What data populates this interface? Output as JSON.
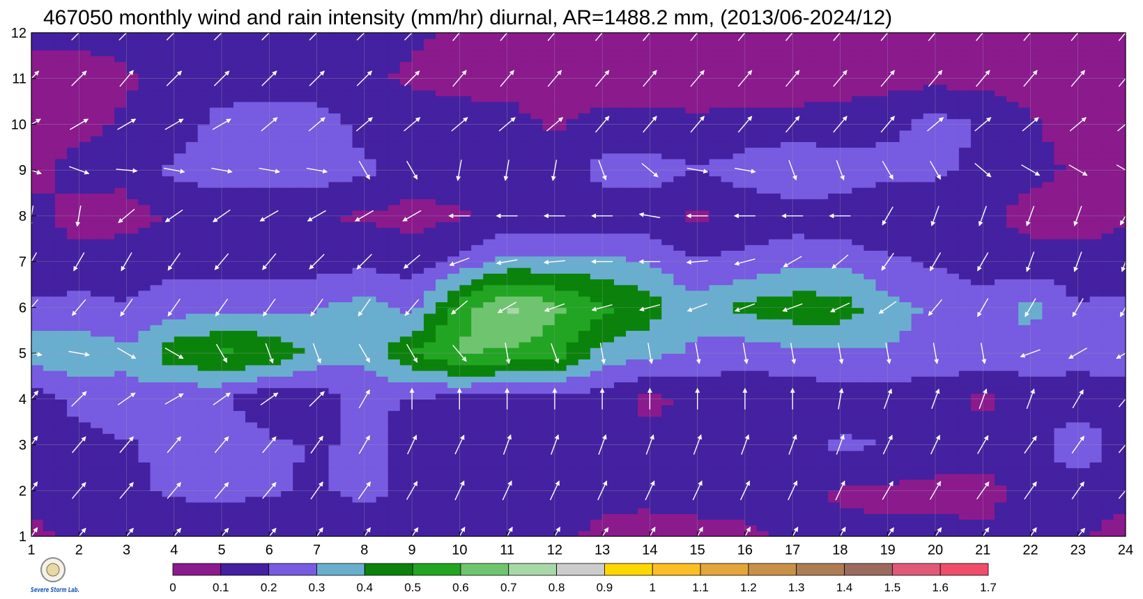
{
  "chart_data": {
    "type": "heatmap",
    "title": "467050 monthly wind and rain intensity (mm/hr) diurnal, AR=1488.2 mm, (2013/06-2024/12)",
    "xlabel": "",
    "ylabel": "",
    "xlim": [
      1,
      24
    ],
    "ylim": [
      1,
      12
    ],
    "x_ticks": [
      "1",
      "2",
      "3",
      "4",
      "5",
      "6",
      "7",
      "8",
      "9",
      "10",
      "11",
      "12",
      "13",
      "14",
      "15",
      "16",
      "17",
      "18",
      "19",
      "20",
      "21",
      "22",
      "23",
      "24"
    ],
    "y_ticks": [
      "1",
      "2",
      "3",
      "4",
      "5",
      "6",
      "7",
      "8",
      "9",
      "10",
      "11",
      "12"
    ],
    "grid": true,
    "colorbar": {
      "levels": [
        "0",
        "0.1",
        "0.2",
        "0.3",
        "0.4",
        "0.5",
        "0.6",
        "0.7",
        "0.8",
        "0.9",
        "1",
        "1.1",
        "1.2",
        "1.3",
        "1.4",
        "1.5",
        "1.6",
        "1.7"
      ],
      "colors": [
        "#8b1a8c",
        "#4421a0",
        "#775be0",
        "#6aaecf",
        "#0b820b",
        "#22a522",
        "#6fc56f",
        "#a7d9a7",
        "#cccccc",
        "#ffd700",
        "#fbbe24",
        "#e4a53a",
        "#c99148",
        "#ae7d53",
        "#9b6b5e",
        "#e05a78",
        "#ef4d6a",
        "#d92a3a"
      ],
      "position": "bottom"
    },
    "rain_grid": [
      [
        0.08,
        0.12,
        0.14,
        0.15,
        0.14,
        0.14,
        0.14,
        0.14,
        0.13,
        0.13,
        0.13,
        0.12,
        0.08,
        0.06,
        0.07,
        0.08,
        0.12,
        0.12,
        0.12,
        0.12,
        0.11,
        0.12,
        0.12,
        0.06
      ],
      [
        0.12,
        0.16,
        0.19,
        0.21,
        0.22,
        0.21,
        0.19,
        0.22,
        0.18,
        0.14,
        0.13,
        0.13,
        0.12,
        0.13,
        0.14,
        0.14,
        0.13,
        0.09,
        0.08,
        0.08,
        0.08,
        0.12,
        0.12,
        0.13
      ],
      [
        0.14,
        0.17,
        0.19,
        0.22,
        0.31,
        0.22,
        0.19,
        0.22,
        0.17,
        0.14,
        0.14,
        0.14,
        0.14,
        0.14,
        0.13,
        0.13,
        0.14,
        0.22,
        0.2,
        0.14,
        0.13,
        0.13,
        0.31,
        0.13
      ],
      [
        0.13,
        0.23,
        0.27,
        0.22,
        0.21,
        0.12,
        0.15,
        0.23,
        0.19,
        0.16,
        0.15,
        0.15,
        0.15,
        0.07,
        0.13,
        0.12,
        0.13,
        0.14,
        0.14,
        0.13,
        0.08,
        0.14,
        0.13,
        0.13
      ],
      [
        0.37,
        0.37,
        0.32,
        0.46,
        0.52,
        0.49,
        0.36,
        0.32,
        0.5,
        0.62,
        0.58,
        0.55,
        0.36,
        0.32,
        0.28,
        0.24,
        0.28,
        0.29,
        0.29,
        0.27,
        0.27,
        0.26,
        0.25,
        0.27
      ],
      [
        0.22,
        0.24,
        0.21,
        0.26,
        0.27,
        0.27,
        0.29,
        0.35,
        0.27,
        0.55,
        0.73,
        0.62,
        0.52,
        0.45,
        0.33,
        0.43,
        0.46,
        0.45,
        0.34,
        0.28,
        0.24,
        0.33,
        0.21,
        0.23
      ],
      [
        0.12,
        0.13,
        0.14,
        0.17,
        0.16,
        0.15,
        0.16,
        0.17,
        0.16,
        0.23,
        0.33,
        0.34,
        0.33,
        0.29,
        0.21,
        0.23,
        0.28,
        0.28,
        0.22,
        0.19,
        0.16,
        0.14,
        0.13,
        0.14
      ],
      [
        0.12,
        0.07,
        0.07,
        0.11,
        0.12,
        0.11,
        0.1,
        0.09,
        0.06,
        0.09,
        0.13,
        0.11,
        0.13,
        0.13,
        0.08,
        0.12,
        0.14,
        0.13,
        0.09,
        0.14,
        0.12,
        0.07,
        0.06,
        0.09
      ],
      [
        0.08,
        0.13,
        0.12,
        0.22,
        0.25,
        0.26,
        0.25,
        0.22,
        0.16,
        0.14,
        0.21,
        0.13,
        0.24,
        0.25,
        0.2,
        0.25,
        0.3,
        0.28,
        0.24,
        0.22,
        0.17,
        0.12,
        0.09,
        0.09
      ],
      [
        0.06,
        0.08,
        0.11,
        0.14,
        0.24,
        0.27,
        0.26,
        0.17,
        0.14,
        0.13,
        0.13,
        0.09,
        0.13,
        0.13,
        0.12,
        0.13,
        0.13,
        0.13,
        0.17,
        0.24,
        0.19,
        0.11,
        0.07,
        0.06
      ],
      [
        0.06,
        0.06,
        0.09,
        0.14,
        0.14,
        0.13,
        0.13,
        0.11,
        0.09,
        0.08,
        0.07,
        0.06,
        0.06,
        0.05,
        0.05,
        0.06,
        0.06,
        0.07,
        0.07,
        0.07,
        0.07,
        0.06,
        0.06,
        0.07
      ],
      [
        0.12,
        0.12,
        0.13,
        0.13,
        0.13,
        0.13,
        0.13,
        0.13,
        0.11,
        0.09,
        0.08,
        0.07,
        0.06,
        0.06,
        0.06,
        0.06,
        0.06,
        0.06,
        0.06,
        0.06,
        0.06,
        0.06,
        0.06,
        0.07
      ]
    ],
    "wind_grid_direction_deg": [
      [
        35,
        40,
        40,
        40,
        40,
        40,
        35,
        35,
        35,
        30,
        30,
        30,
        35,
        30,
        30,
        30,
        30,
        30,
        35,
        35,
        35,
        35,
        40,
        35
      ],
      [
        35,
        40,
        40,
        40,
        40,
        40,
        35,
        35,
        30,
        25,
        25,
        25,
        25,
        25,
        25,
        25,
        25,
        25,
        30,
        30,
        35,
        35,
        35,
        40
      ],
      [
        35,
        40,
        40,
        40,
        40,
        40,
        35,
        30,
        25,
        25,
        20,
        20,
        20,
        20,
        20,
        20,
        20,
        20,
        25,
        25,
        30,
        35,
        35,
        40
      ],
      [
        40,
        45,
        55,
        60,
        55,
        55,
        45,
        30,
        0,
        0,
        0,
        0,
        0,
        0,
        0,
        0,
        0,
        10,
        20,
        20,
        20,
        20,
        30,
        40
      ],
      [
        100,
        100,
        120,
        120,
        150,
        160,
        160,
        150,
        150,
        140,
        170,
        160,
        170,
        170,
        170,
        170,
        170,
        170,
        170,
        170,
        170,
        250,
        240,
        240
      ],
      [
        220,
        220,
        215,
        215,
        215,
        215,
        215,
        215,
        220,
        230,
        240,
        250,
        255,
        255,
        250,
        250,
        250,
        245,
        235,
        220,
        210,
        210,
        210,
        210
      ],
      [
        210,
        210,
        210,
        215,
        220,
        220,
        225,
        225,
        230,
        250,
        260,
        265,
        270,
        270,
        265,
        255,
        240,
        230,
        215,
        210,
        210,
        200,
        200,
        200
      ],
      [
        190,
        190,
        230,
        235,
        235,
        240,
        240,
        240,
        240,
        270,
        270,
        270,
        270,
        280,
        270,
        270,
        270,
        270,
        210,
        200,
        200,
        200,
        200,
        210
      ],
      [
        110,
        110,
        95,
        100,
        100,
        100,
        100,
        150,
        150,
        190,
        190,
        190,
        160,
        130,
        100,
        100,
        160,
        160,
        150,
        150,
        130,
        120,
        120,
        120
      ],
      [
        60,
        60,
        60,
        60,
        60,
        50,
        50,
        50,
        50,
        50,
        50,
        50,
        40,
        40,
        40,
        40,
        40,
        40,
        40,
        50,
        50,
        50,
        50,
        50
      ],
      [
        45,
        45,
        40,
        45,
        45,
        45,
        45,
        45,
        45,
        40,
        40,
        40,
        40,
        40,
        40,
        40,
        40,
        40,
        40,
        40,
        40,
        40,
        40,
        40
      ],
      [
        45,
        45,
        45,
        45,
        45,
        45,
        45,
        45,
        45,
        40,
        40,
        40,
        40,
        40,
        40,
        40,
        40,
        40,
        40,
        40,
        40,
        40,
        40,
        40
      ]
    ]
  },
  "logo": {
    "name": "storm-lab-logo",
    "text": "Severe Storm Lab."
  }
}
